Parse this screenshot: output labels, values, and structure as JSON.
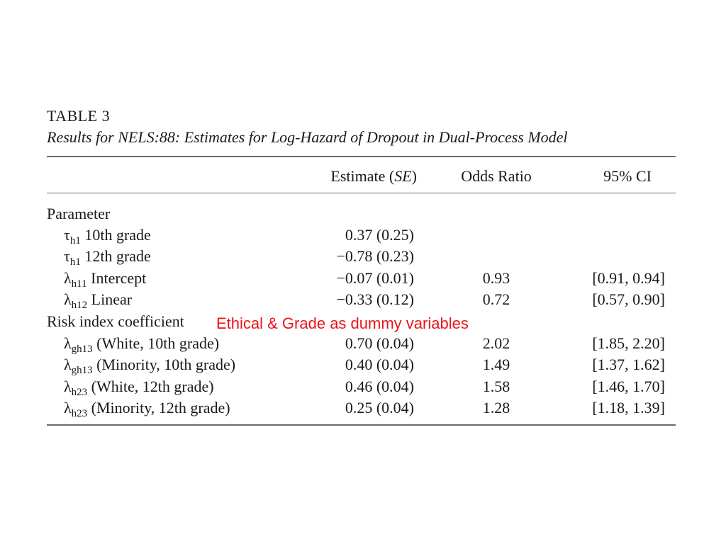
{
  "table": {
    "label": "TABLE 3",
    "title": "Results for NELS:88: Estimates for Log-Hazard of Dropout in Dual-Process Model",
    "headers": {
      "estimate_pre": "Estimate (",
      "estimate_se": "SE",
      "estimate_post": ")",
      "odds_ratio": "Odds Ratio",
      "ci": "95% CI"
    },
    "sections": {
      "parameter": "Parameter",
      "risk_index": "Risk index coefficient"
    },
    "rows": [
      {
        "symbol": "τ",
        "sub": "h1",
        "label": " 10th grade",
        "estimate": "0.37 (0.25)",
        "odds_ratio": "",
        "ci": ""
      },
      {
        "symbol": "τ",
        "sub": "h1",
        "label": " 12th grade",
        "estimate": "−0.78 (0.23)",
        "odds_ratio": "",
        "ci": ""
      },
      {
        "symbol": "λ",
        "sub": "h11",
        "label": " Intercept",
        "estimate": "−0.07 (0.01)",
        "odds_ratio": "0.93",
        "ci": "[0.91, 0.94]"
      },
      {
        "symbol": "λ",
        "sub": "h12",
        "label": " Linear",
        "estimate": "−0.33 (0.12)",
        "odds_ratio": "0.72",
        "ci": "[0.57, 0.90]"
      },
      {
        "symbol": "λ",
        "sub": "gh13",
        "label": " (White, 10th grade)",
        "estimate": "0.70 (0.04)",
        "odds_ratio": "2.02",
        "ci": "[1.85, 2.20]"
      },
      {
        "symbol": "λ",
        "sub": "gh13",
        "label": " (Minority, 10th grade)",
        "estimate": "0.40 (0.04)",
        "odds_ratio": "1.49",
        "ci": "[1.37, 1.62]"
      },
      {
        "symbol": "λ",
        "sub": "h23",
        "label": " (White, 12th grade)",
        "estimate": "0.46 (0.04)",
        "odds_ratio": "1.58",
        "ci": "[1.46, 1.70]"
      },
      {
        "symbol": "λ",
        "sub": "h23",
        "label": " (Minority, 12th grade)",
        "estimate": "0.25 (0.04)",
        "odds_ratio": "1.28",
        "ci": "[1.18, 1.39]"
      }
    ]
  },
  "annotation": {
    "text": "Ethical & Grade as dummy variables",
    "color": "#e8141a"
  }
}
